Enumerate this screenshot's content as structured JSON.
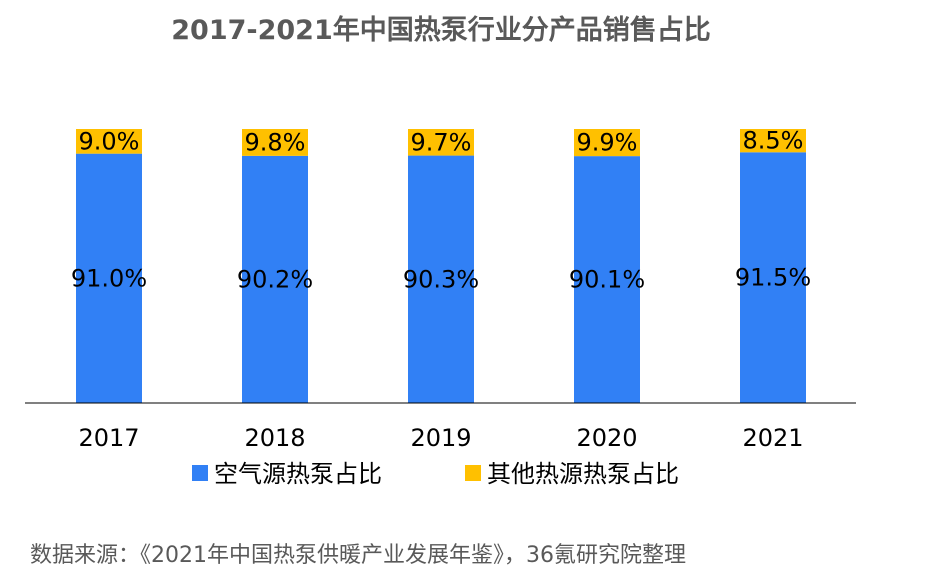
{
  "chart_data": {
    "type": "bar",
    "stacked": true,
    "title": "2017-2021年中国热泵行业分产品销售占比",
    "categories": [
      "2017",
      "2018",
      "2019",
      "2020",
      "2021"
    ],
    "series": [
      {
        "name": "空气源热泵占比",
        "color": "#3180F5",
        "values": [
          91.0,
          90.2,
          90.3,
          90.1,
          91.5
        ],
        "labels": [
          "91.0%",
          "90.2%",
          "90.3%",
          "90.1%",
          "91.5%"
        ]
      },
      {
        "name": "其他热源热泵占比",
        "color": "#FFC000",
        "values": [
          9.0,
          9.8,
          9.7,
          9.9,
          8.5
        ],
        "labels": [
          "9.0%",
          "9.8%",
          "9.7%",
          "9.9%",
          "8.5%"
        ]
      }
    ],
    "ylim": [
      0,
      100
    ],
    "xlabel": "",
    "ylabel": "",
    "grid": false,
    "legend_position": "bottom"
  },
  "source": "数据来源：《2021年中国热泵供暖产业发展年鉴》，36氪研究院整理"
}
